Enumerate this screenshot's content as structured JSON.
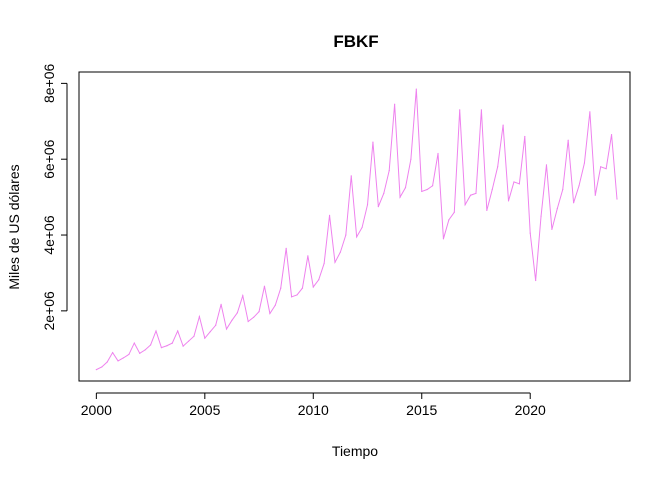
{
  "chart_data": {
    "type": "line",
    "title": "FBKF",
    "xlabel": "Tiempo",
    "ylabel": "Miles de US dólares",
    "xlim": [
      1999.2,
      2024.6
    ],
    "ylim": [
      150000,
      8300000
    ],
    "xticks": [
      2000,
      2005,
      2010,
      2015,
      2020
    ],
    "xtick_labels": [
      "2000",
      "2005",
      "2010",
      "2015",
      "2020"
    ],
    "yticks": [
      2000000,
      4000000,
      6000000,
      8000000
    ],
    "ytick_labels": [
      "2e+06",
      "4e+06",
      "6e+06",
      "8e+06"
    ],
    "grid": false,
    "series_color": "#EE82EE",
    "series": [
      {
        "name": "",
        "x": [
          2000.0,
          2000.25,
          2000.5,
          2000.75,
          2001.0,
          2001.25,
          2001.5,
          2001.75,
          2002.0,
          2002.25,
          2002.5,
          2002.75,
          2003.0,
          2003.25,
          2003.5,
          2003.75,
          2004.0,
          2004.25,
          2004.5,
          2004.75,
          2005.0,
          2005.25,
          2005.5,
          2005.75,
          2006.0,
          2006.25,
          2006.5,
          2006.75,
          2007.0,
          2007.25,
          2007.5,
          2007.75,
          2008.0,
          2008.25,
          2008.5,
          2008.75,
          2009.0,
          2009.25,
          2009.5,
          2009.75,
          2010.0,
          2010.25,
          2010.5,
          2010.75,
          2011.0,
          2011.25,
          2011.5,
          2011.75,
          2012.0,
          2012.25,
          2012.5,
          2012.75,
          2013.0,
          2013.25,
          2013.5,
          2013.75,
          2014.0,
          2014.25,
          2014.5,
          2014.75,
          2015.0,
          2015.25,
          2015.5,
          2015.75,
          2016.0,
          2016.25,
          2016.5,
          2016.75,
          2017.0,
          2017.25,
          2017.5,
          2017.75,
          2018.0,
          2018.25,
          2018.5,
          2018.75,
          2019.0,
          2019.25,
          2019.5,
          2019.75,
          2020.0,
          2020.25,
          2020.5,
          2020.75,
          2021.0,
          2021.25,
          2021.5,
          2021.75,
          2022.0,
          2022.25,
          2022.5,
          2022.75,
          2023.0,
          2023.25,
          2023.5,
          2023.75,
          2024.0
        ],
        "values": [
          450000,
          520000,
          650000,
          900000,
          680000,
          760000,
          850000,
          1150000,
          880000,
          970000,
          1100000,
          1470000,
          1030000,
          1080000,
          1150000,
          1470000,
          1070000,
          1200000,
          1330000,
          1850000,
          1280000,
          1450000,
          1620000,
          2170000,
          1520000,
          1750000,
          1950000,
          2400000,
          1720000,
          1830000,
          1980000,
          2650000,
          1930000,
          2150000,
          2600000,
          3650000,
          2370000,
          2420000,
          2600000,
          3450000,
          2630000,
          2820000,
          3250000,
          4520000,
          3280000,
          3550000,
          4000000,
          5560000,
          3950000,
          4200000,
          4800000,
          6450000,
          4750000,
          5100000,
          5700000,
          7450000,
          5000000,
          5250000,
          6000000,
          7850000,
          5150000,
          5200000,
          5300000,
          6150000,
          3900000,
          4400000,
          4600000,
          7300000,
          4800000,
          5050000,
          5100000,
          7300000,
          4650000,
          5200000,
          5800000,
          6900000,
          4900000,
          5400000,
          5350000,
          6600000,
          4050000,
          2800000,
          4500000,
          5850000,
          4150000,
          4700000,
          5200000,
          6500000,
          4850000,
          5300000,
          5900000,
          7250000,
          5050000,
          5800000,
          5750000,
          6650000,
          4950000
        ]
      }
    ]
  }
}
